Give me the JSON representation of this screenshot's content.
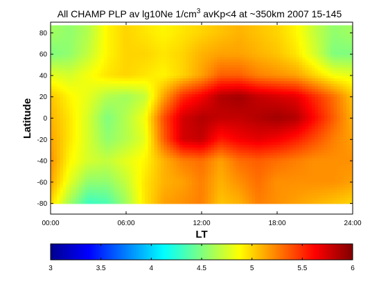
{
  "chart_data": {
    "type": "heatmap",
    "title_prefix": "All CHAMP PLP av lg10Ne 1/cm",
    "title_superscript": "3",
    "title_suffix": " avKp<4 at ~350km 2007 15-145",
    "xlabel": "LT",
    "ylabel": "Latitude",
    "xlim": [
      0,
      24
    ],
    "ylim": [
      -90,
      90
    ],
    "data_lat_range": [
      -80,
      87
    ],
    "x_tick_values": [
      0,
      6,
      12,
      18,
      24
    ],
    "x_tick_labels": [
      "00:00",
      "06:00",
      "12:00",
      "18:00",
      "24:00"
    ],
    "y_tick_values": [
      -80,
      -60,
      -40,
      -20,
      0,
      20,
      40,
      60,
      80
    ],
    "y_tick_labels": [
      "-80",
      "-60",
      "-40",
      "-20",
      "0",
      "20",
      "40",
      "60",
      "80"
    ],
    "colorbar": {
      "colormap": "jet",
      "range": [
        3,
        6
      ],
      "tick_values": [
        3,
        3.5,
        4,
        4.5,
        5,
        5.5,
        6
      ],
      "tick_labels": [
        "3",
        "3.5",
        "4",
        "4.5",
        "5",
        "5.5",
        "6"
      ]
    },
    "lt_hours": [
      0,
      1.5,
      3,
      4.5,
      6,
      7.5,
      9,
      10.5,
      12,
      13.5,
      15,
      16.5,
      18,
      19.5,
      21,
      22.5,
      24
    ],
    "latitudes": [
      80,
      60,
      40,
      20,
      0,
      -20,
      -40,
      -60,
      -80
    ],
    "values": [
      [
        4.6,
        4.55,
        4.65,
        4.9,
        5.0,
        4.95,
        4.9,
        4.95,
        5.0,
        5.05,
        5.1,
        5.05,
        5.0,
        4.9,
        4.7,
        4.55,
        4.6
      ],
      [
        4.5,
        4.55,
        4.7,
        4.9,
        5.0,
        5.0,
        4.95,
        5.0,
        5.1,
        5.15,
        5.15,
        5.1,
        5.05,
        4.95,
        4.75,
        4.5,
        4.5
      ],
      [
        4.8,
        4.75,
        4.85,
        4.95,
        5.0,
        4.95,
        4.9,
        5.0,
        5.15,
        5.35,
        5.35,
        5.25,
        5.2,
        5.15,
        5.0,
        4.85,
        4.8
      ],
      [
        5.05,
        4.9,
        4.8,
        4.65,
        4.6,
        4.7,
        5.15,
        5.5,
        5.65,
        5.85,
        5.9,
        5.8,
        5.75,
        5.7,
        5.5,
        5.3,
        5.05
      ],
      [
        5.1,
        4.95,
        4.75,
        4.5,
        4.65,
        4.85,
        5.4,
        5.75,
        5.85,
        5.8,
        5.8,
        5.85,
        5.9,
        5.85,
        5.6,
        5.35,
        5.1
      ],
      [
        5.15,
        4.95,
        4.75,
        4.55,
        4.65,
        4.8,
        5.35,
        5.75,
        5.8,
        5.55,
        5.65,
        5.7,
        5.65,
        5.55,
        5.4,
        5.25,
        5.15
      ],
      [
        5.2,
        4.9,
        4.75,
        4.7,
        4.8,
        4.9,
        5.1,
        5.25,
        5.3,
        5.15,
        5.3,
        5.35,
        5.3,
        5.25,
        5.2,
        5.2,
        5.2
      ],
      [
        5.15,
        4.8,
        4.55,
        4.55,
        4.7,
        4.95,
        5.1,
        5.15,
        5.25,
        5.1,
        5.2,
        5.3,
        5.2,
        5.2,
        5.2,
        5.2,
        5.15
      ],
      [
        5.0,
        4.6,
        4.3,
        4.35,
        4.6,
        4.95,
        5.15,
        5.2,
        5.25,
        5.05,
        5.1,
        5.25,
        5.2,
        5.15,
        5.1,
        5.05,
        5.0
      ]
    ]
  }
}
